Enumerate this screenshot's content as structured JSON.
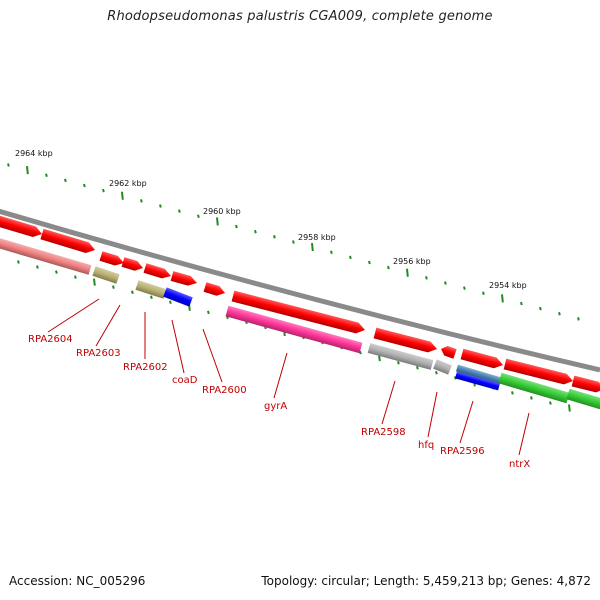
{
  "title": "Rhodopseudomonas palustris CGA009, complete genome",
  "footer": {
    "accession": "Accession: NC_005296",
    "summary": "Topology: circular; Length: 5,459,213 bp; Genes: 4,872"
  },
  "ruler": {
    "labels": [
      "2964 kbp",
      "2962 kbp",
      "2960 kbp",
      "2958 kbp",
      "2956 kbp",
      "2954 kbp"
    ]
  },
  "gene_labels": [
    "RPA2604",
    "RPA2603",
    "RPA2602",
    "coaD",
    "RPA2600",
    "gyrA",
    "RPA2598",
    "hfq",
    "RPA2596",
    "ntrX"
  ],
  "colors": {
    "backbone": "#8a8a8a",
    "cds": "#ff0000",
    "pseudo_pink": "#f08080",
    "olive": "#b8b070",
    "blue": "#0000ff",
    "magenta": "#ff3399",
    "grey": "#b0b0b0",
    "steel": "#4682b4",
    "green": "#33cc33",
    "tick": "#228b22",
    "label": "#c00000"
  }
}
